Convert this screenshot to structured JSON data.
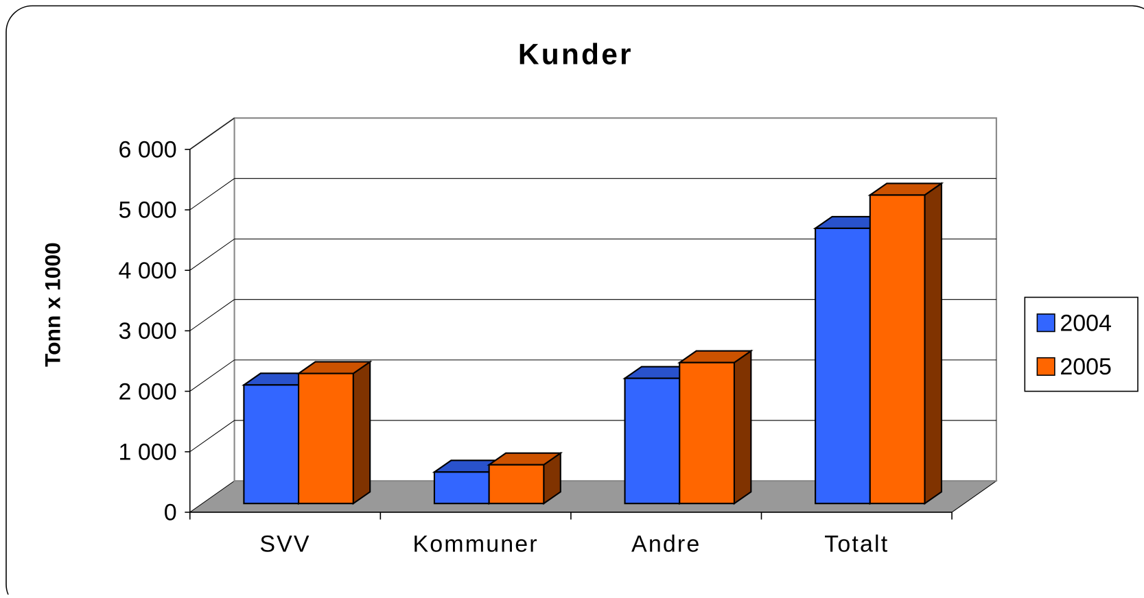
{
  "chart_data": {
    "type": "bar3d",
    "title": "Kunder",
    "y_label": "Tonn x 1000",
    "categories": [
      "SVV",
      "Kommuner",
      "Andre",
      "Totalt"
    ],
    "series": [
      {
        "name": "2004",
        "color": "#3366ff",
        "values": [
          1960,
          520,
          2070,
          4550
        ]
      },
      {
        "name": "2005",
        "color": "#ff6600",
        "values": [
          2150,
          640,
          2330,
          5100
        ]
      }
    ],
    "ylim": [
      0,
      6000
    ],
    "yticks": [
      0,
      {
        "value": 1000,
        "label": "1 000"
      },
      {
        "value": 2000,
        "label": "2 000"
      },
      {
        "value": 3000,
        "label": "3 000"
      },
      {
        "value": 4000,
        "label": "4 000"
      },
      {
        "value": 5000,
        "label": "5 000"
      },
      {
        "value": 6000,
        "label": "6 000"
      }
    ],
    "grid": true,
    "legend": "right"
  }
}
